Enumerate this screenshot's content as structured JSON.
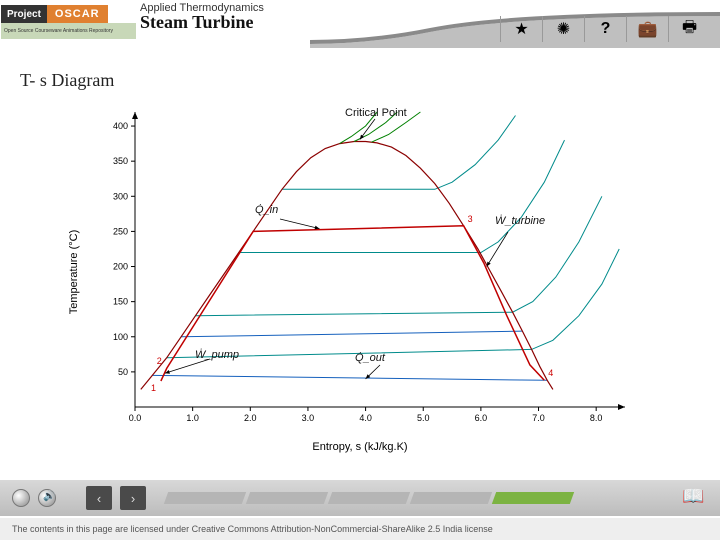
{
  "header": {
    "logo_project": "Project",
    "logo_oscar": "OSCAR",
    "logo_sub": "Open Source Courseware Animations Repository",
    "subtitle": "Applied Thermodynamics",
    "title": "Steam Turbine"
  },
  "toolbar": {
    "star": "★",
    "spark": "✺",
    "help": "?",
    "briefcase": "💼",
    "print": "🖶"
  },
  "section_title": "T- s Diagram",
  "chart": {
    "type": "line",
    "xlabel": "Entropy, s  (kJ/kg.K)",
    "ylabel": "Temperature (°C)",
    "xlim": [
      0.0,
      8.5
    ],
    "ylim": [
      0,
      420
    ],
    "xticks": [
      0.0,
      1.0,
      2.0,
      3.0,
      4.0,
      5.0,
      6.0,
      7.0,
      8.0
    ],
    "yticks": [
      50,
      100,
      150,
      200,
      250,
      300,
      350,
      400
    ],
    "background_color": "#ffffff",
    "axis_color": "#000000",
    "tick_fontsize": 9,
    "label_fontsize": 11,
    "saturation_dome": {
      "color": "#8b0000",
      "width": 1.2,
      "points": [
        [
          0.1,
          25
        ],
        [
          0.3,
          45
        ],
        [
          0.55,
          70
        ],
        [
          0.8,
          100
        ],
        [
          1.05,
          130
        ],
        [
          1.3,
          160
        ],
        [
          1.55,
          190
        ],
        [
          1.8,
          220
        ],
        [
          2.05,
          250
        ],
        [
          2.3,
          280
        ],
        [
          2.55,
          310
        ],
        [
          2.8,
          335
        ],
        [
          3.05,
          355
        ],
        [
          3.3,
          368
        ],
        [
          3.55,
          375
        ],
        [
          3.8,
          378
        ],
        [
          4.0,
          378
        ],
        [
          4.2,
          376
        ],
        [
          4.45,
          370
        ],
        [
          4.7,
          358
        ],
        [
          4.95,
          340
        ],
        [
          5.2,
          318
        ],
        [
          5.45,
          290
        ],
        [
          5.7,
          258
        ],
        [
          5.95,
          225
        ],
        [
          6.15,
          195
        ],
        [
          6.35,
          165
        ],
        [
          6.55,
          135
        ],
        [
          6.72,
          108
        ],
        [
          6.88,
          82
        ],
        [
          7.02,
          58
        ],
        [
          7.15,
          38
        ],
        [
          7.25,
          25
        ]
      ]
    },
    "isobars_green": {
      "color": "#008000",
      "width": 1,
      "lines": [
        [
          [
            3.55,
            375
          ],
          [
            3.75,
            385
          ],
          [
            4.0,
            400
          ],
          [
            4.2,
            420
          ]
        ],
        [
          [
            3.8,
            378
          ],
          [
            4.05,
            388
          ],
          [
            4.35,
            405
          ],
          [
            4.55,
            420
          ]
        ],
        [
          [
            4.1,
            377
          ],
          [
            4.4,
            388
          ],
          [
            4.7,
            405
          ],
          [
            4.95,
            420
          ]
        ]
      ]
    },
    "isobars_teal": {
      "color": "#008b8b",
      "width": 1,
      "lines": [
        [
          [
            2.55,
            310
          ],
          [
            5.2,
            310
          ],
          [
            5.5,
            320
          ],
          [
            5.9,
            345
          ],
          [
            6.3,
            380
          ],
          [
            6.6,
            415
          ]
        ],
        [
          [
            1.8,
            220
          ],
          [
            6.0,
            220
          ],
          [
            6.3,
            235
          ],
          [
            6.7,
            270
          ],
          [
            7.1,
            320
          ],
          [
            7.45,
            380
          ]
        ],
        [
          [
            1.05,
            130
          ],
          [
            6.55,
            135
          ],
          [
            6.9,
            150
          ],
          [
            7.3,
            185
          ],
          [
            7.7,
            235
          ],
          [
            8.1,
            300
          ]
        ],
        [
          [
            0.55,
            70
          ],
          [
            6.88,
            82
          ],
          [
            7.25,
            95
          ],
          [
            7.7,
            130
          ],
          [
            8.1,
            175
          ],
          [
            8.4,
            225
          ]
        ]
      ]
    },
    "blue_lines": {
      "color": "#1560bd",
      "width": 1,
      "lines": [
        [
          [
            0.3,
            45
          ],
          [
            7.15,
            38
          ]
        ],
        [
          [
            0.8,
            100
          ],
          [
            6.72,
            108
          ]
        ]
      ]
    },
    "rankine_cycle": {
      "color": "#c00000",
      "width": 1.5,
      "points": [
        [
          0.45,
          37
        ],
        [
          0.55,
          55
        ],
        [
          2.05,
          250
        ],
        [
          5.7,
          258
        ],
        [
          6.05,
          205
        ],
        [
          6.45,
          130
        ],
        [
          6.85,
          60
        ],
        [
          7.1,
          38
        ]
      ]
    },
    "state_points": [
      {
        "label": "1",
        "s": 0.45,
        "T": 37
      },
      {
        "label": "2",
        "s": 0.55,
        "T": 55
      },
      {
        "label": "3",
        "s": 5.7,
        "T": 258
      },
      {
        "label": "4",
        "s": 7.1,
        "T": 38
      }
    ],
    "annotations": {
      "critical_point": "Critical Point",
      "q_in": "Q̇_in",
      "q_out": "Q̇_out",
      "w_pump": "Ẇ_pump",
      "w_turbine": "Ẇ_turbine"
    }
  },
  "bottombar": {
    "prev": "‹",
    "next": "›",
    "segments": 5,
    "active_segment": 4,
    "book_icon": "📖"
  },
  "footer": {
    "license": "The contents in this page are licensed under Creative Commons Attribution-NonCommercial-ShareAlike 2.5 India license"
  }
}
